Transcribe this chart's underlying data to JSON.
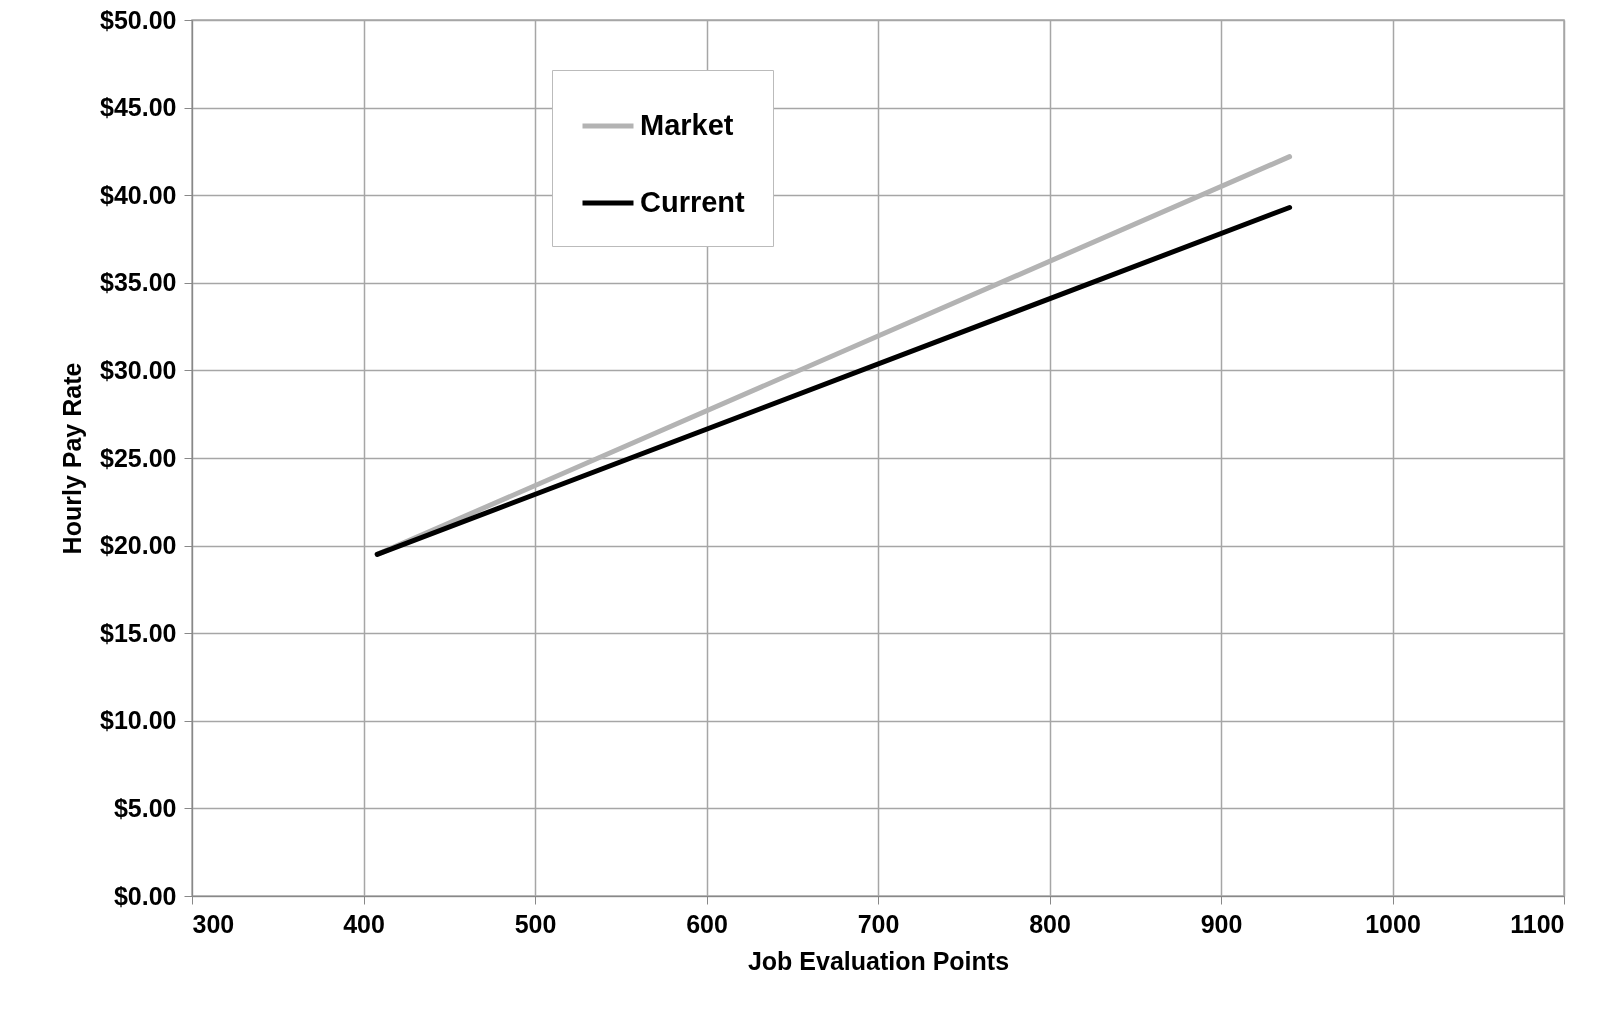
{
  "chart_data": {
    "type": "line",
    "xlabel": "Job Evaluation Points",
    "ylabel": "Hourly Pay Rate",
    "x": [
      408,
      940
    ],
    "xlim": [
      300,
      1100
    ],
    "xticks": [
      300,
      400,
      500,
      600,
      700,
      800,
      900,
      1000,
      1100
    ],
    "ylim": [
      0,
      50
    ],
    "yticks": [
      {
        "value": 0,
        "label": "$0.00"
      },
      {
        "value": 5,
        "label": "$5.00"
      },
      {
        "value": 10,
        "label": "$10.00"
      },
      {
        "value": 15,
        "label": "$15.00"
      },
      {
        "value": 20,
        "label": "$20.00"
      },
      {
        "value": 25,
        "label": "$25.00"
      },
      {
        "value": 30,
        "label": "$30.00"
      },
      {
        "value": 35,
        "label": "$35.00"
      },
      {
        "value": 40,
        "label": "$40.00"
      },
      {
        "value": 45,
        "label": "$45.00"
      },
      {
        "value": 50,
        "label": "$50.00"
      }
    ],
    "series": [
      {
        "name": "Market",
        "color": "#b3b3b3",
        "values": [
          19.5,
          42.2
        ]
      },
      {
        "name": "Current",
        "color": "#000000",
        "values": [
          19.5,
          39.3
        ]
      }
    ],
    "grid": true,
    "legend": "top left",
    "marker": "none",
    "line_style": "solid"
  }
}
